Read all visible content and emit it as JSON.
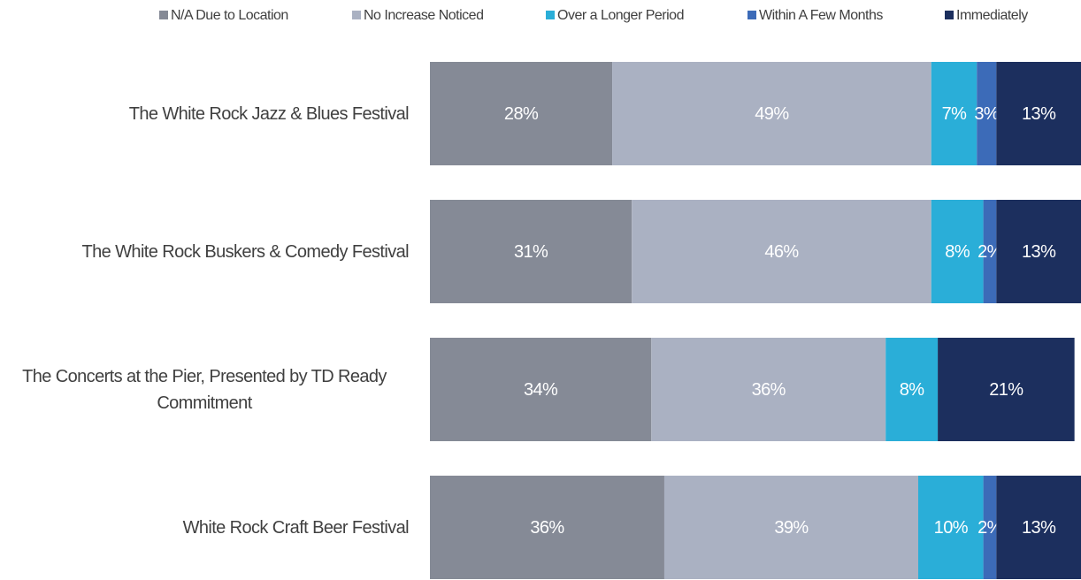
{
  "chart_data": {
    "type": "stacked-bar-horizontal",
    "categories": [
      "The White Rock Jazz & Blues Festival",
      "The White Rock Buskers & Comedy Festival",
      "The Concerts at the Pier, Presented by TD Ready Commitment",
      "White Rock Craft Beer Festival"
    ],
    "series": [
      {
        "name": "N/A Due to Location",
        "color": "#858a96",
        "values": [
          28,
          31,
          34,
          36
        ],
        "value_labels": [
          "28%",
          "31%",
          "34%",
          "36%"
        ]
      },
      {
        "name": "No Increase Noticed",
        "color": "#aab1c2",
        "values": [
          49,
          46,
          36,
          39
        ],
        "value_labels": [
          "49%",
          "46%",
          "36%",
          "39%"
        ]
      },
      {
        "name": "Over a Longer Period",
        "color": "#2aaed8",
        "values": [
          7,
          8,
          8,
          10
        ],
        "value_labels": [
          "7%",
          "8%",
          "8%",
          "10%"
        ]
      },
      {
        "name": "Within A Few Months",
        "color": "#3c6bb8",
        "values": [
          3,
          2,
          0,
          2
        ],
        "value_labels": [
          "3%",
          "2%",
          null,
          "2%"
        ]
      },
      {
        "name": "Immediately",
        "color": "#1c2f5e",
        "values": [
          13,
          13,
          21,
          13
        ],
        "value_labels": [
          "13%",
          "13%",
          "21%",
          "13%"
        ]
      }
    ],
    "xlim": [
      0,
      100
    ],
    "legend": "top"
  }
}
